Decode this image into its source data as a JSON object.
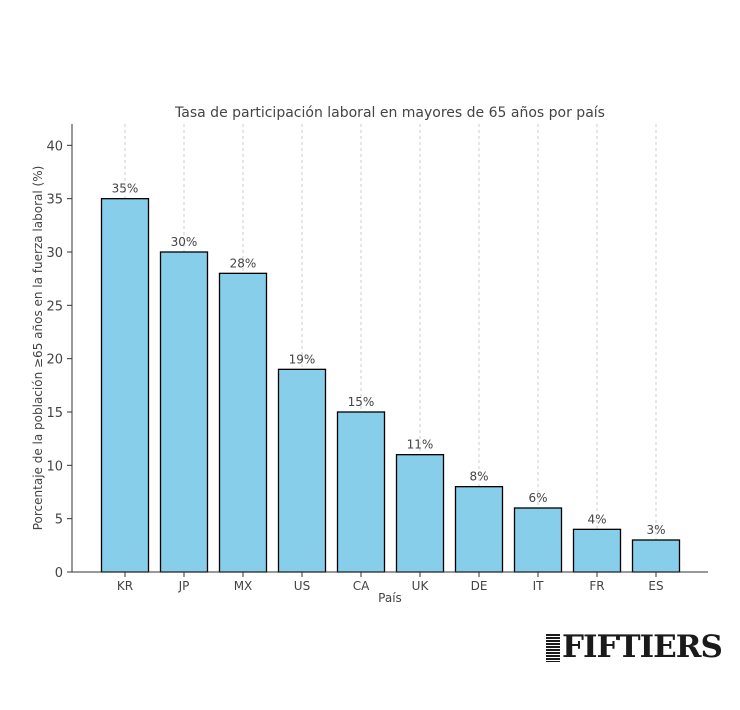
{
  "chart_data": {
    "type": "bar",
    "title": "Tasa de participación laboral en mayores de 65 años por país",
    "xlabel": "País",
    "ylabel": "Porcentaje de la población ≥65 años en la fuerza laboral (%)",
    "categories": [
      "KR",
      "JP",
      "MX",
      "US",
      "CA",
      "UK",
      "DE",
      "IT",
      "FR",
      "ES"
    ],
    "values": [
      35,
      30,
      28,
      19,
      15,
      11,
      8,
      6,
      4,
      3
    ],
    "data_labels": [
      "35%",
      "30%",
      "28%",
      "19%",
      "15%",
      "11%",
      "8%",
      "6%",
      "4%",
      "3%"
    ],
    "yticks": [
      0,
      5,
      10,
      15,
      20,
      25,
      30,
      35,
      40
    ],
    "ylim": [
      0,
      42
    ],
    "grid": "vertical dashed",
    "colors": {
      "bar_fill": "#87CEEB",
      "bar_edge": "#000000",
      "grid": "#cccccc"
    }
  },
  "brand": {
    "logo_text": "FIFTIERS"
  }
}
